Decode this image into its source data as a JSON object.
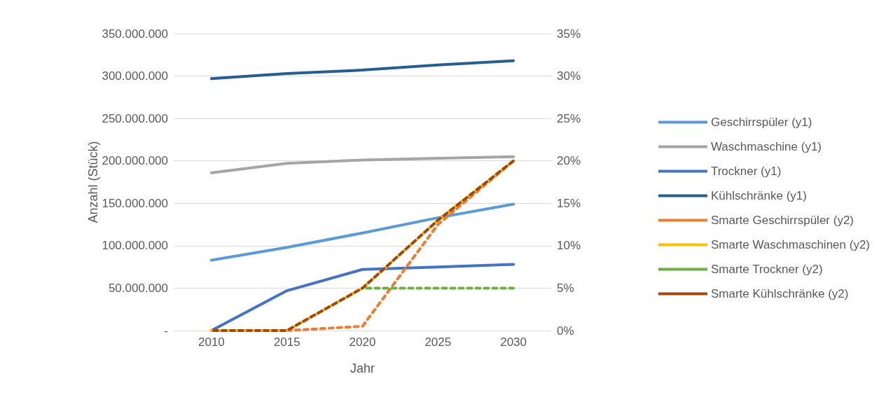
{
  "chart_data": {
    "type": "line",
    "xlabel": "Jahr",
    "ylabel": "Anzahl (Stück)",
    "categories": [
      "2010",
      "2015",
      "2020",
      "2025",
      "2030"
    ],
    "series": [
      {
        "name": "Geschirrspüler (y1)",
        "color": "#5b9bd5",
        "values": [
          83000000,
          98000000,
          115000000,
          133000000,
          149000000
        ]
      },
      {
        "name": "Waschmaschine (y1)",
        "color": "#a5a5a5",
        "values": [
          186000000,
          197000000,
          201000000,
          203000000,
          205000000
        ]
      },
      {
        "name": "Trockner (y1)",
        "color": "#4472c4",
        "values": [
          0,
          47000000,
          72000000,
          75000000,
          78000000
        ]
      },
      {
        "name": "Kühlschränke (y1)",
        "color": "#255e91",
        "values": [
          297000000,
          303000000,
          307000000,
          313000000,
          318000000
        ]
      },
      {
        "name": "Smarte Geschirrspüler (y2)",
        "color": "#ed7d31",
        "axis": "y2",
        "line_style": "dashed",
        "values": [
          0,
          0,
          0.5,
          12.5,
          20
        ]
      },
      {
        "name": "Smarte Waschmaschinen (y2)",
        "color": "#ffc000",
        "axis": "y2",
        "line_style": "dashed",
        "values": [
          0,
          0,
          5,
          13,
          20
        ]
      },
      {
        "name": "Smarte Trockner (y2)",
        "color": "#70ad47",
        "axis": "y2",
        "line_style": "dashed",
        "values": [
          null,
          null,
          5,
          5,
          5
        ]
      },
      {
        "name": "Smarte Kühlschränke (y2)",
        "color": "#9e480e",
        "axis": "y2",
        "line_style": "dashed",
        "values": [
          0,
          0,
          5,
          13,
          20
        ]
      }
    ],
    "ylim": [
      0,
      350000000
    ],
    "yticks": [
      {
        "value": 0,
        "label": "-"
      },
      {
        "value": 50000000,
        "label": "50.000.000"
      },
      {
        "value": 100000000,
        "label": "100.000.000"
      },
      {
        "value": 150000000,
        "label": "150.000.000"
      },
      {
        "value": 200000000,
        "label": "200.000.000"
      },
      {
        "value": 250000000,
        "label": "250.000.000"
      },
      {
        "value": 300000000,
        "label": "300.000.000"
      },
      {
        "value": 350000000,
        "label": "350.000.000"
      }
    ],
    "y2lim": [
      0,
      35
    ],
    "y2ticks": [
      {
        "value": 0,
        "label": "0%"
      },
      {
        "value": 5,
        "label": "5%"
      },
      {
        "value": 10,
        "label": "10%"
      },
      {
        "value": 15,
        "label": "15%"
      },
      {
        "value": 20,
        "label": "20%"
      },
      {
        "value": 25,
        "label": "25%"
      },
      {
        "value": 30,
        "label": "30%"
      },
      {
        "value": 35,
        "label": "35%"
      }
    ],
    "grid": "y",
    "legend": "right",
    "marker": "none"
  }
}
